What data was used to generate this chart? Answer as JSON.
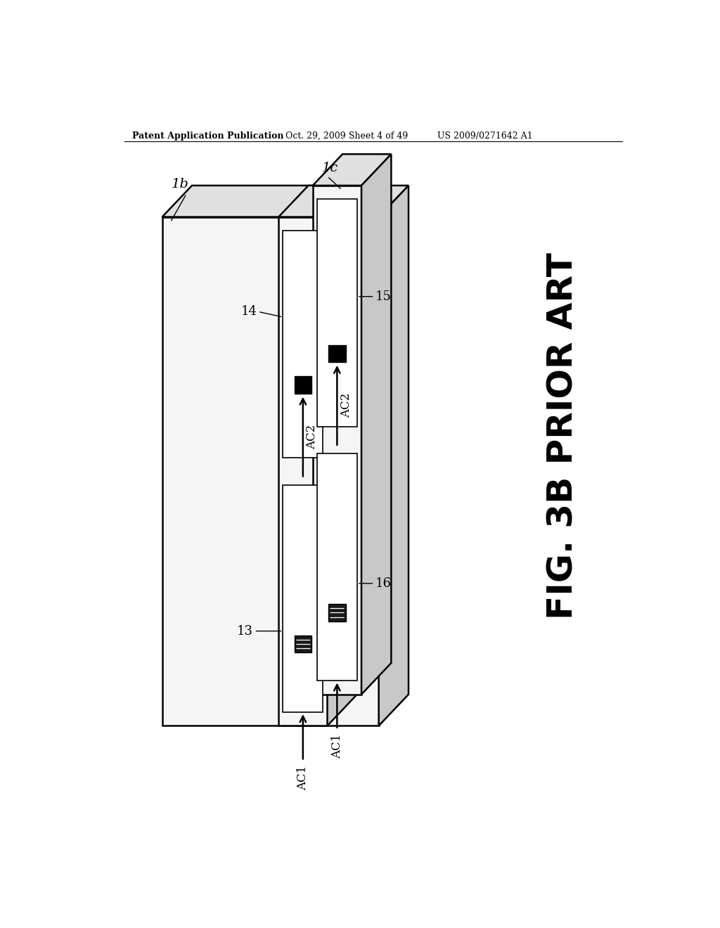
{
  "bg_color": "#ffffff",
  "header_text": "Patent Application Publication",
  "header_date": "Oct. 29, 2009",
  "header_sheet": "Sheet 4 of 49",
  "header_patent": "US 2009/0271642 A1",
  "fig_label": "FIG. 3B PRIOR ART",
  "label_1b": "1b",
  "label_1c": "1c",
  "label_13": "13",
  "label_14": "14",
  "label_15": "15",
  "label_16": "16",
  "label_ac1_left": "AC1",
  "label_ac1_right": "AC1",
  "label_ac2_left": "AC2",
  "label_ac2_right": "AC2",
  "line_color": "#000000",
  "face_light": "#f5f5f5",
  "face_mid": "#e0e0e0",
  "face_dark": "#c8c8c8",
  "white": "#ffffff",
  "black": "#000000",
  "sq_dark": "#1a1a1a"
}
